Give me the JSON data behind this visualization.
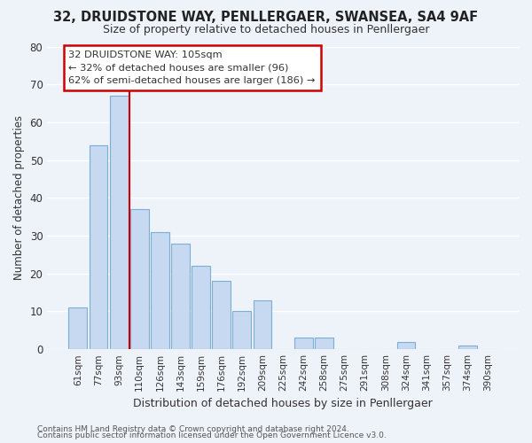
{
  "title": "32, DRUIDSTONE WAY, PENLLERGAER, SWANSEA, SA4 9AF",
  "subtitle": "Size of property relative to detached houses in Penllergaer",
  "xlabel": "Distribution of detached houses by size in Penllergaer",
  "ylabel": "Number of detached properties",
  "bar_labels": [
    "61sqm",
    "77sqm",
    "93sqm",
    "110sqm",
    "126sqm",
    "143sqm",
    "159sqm",
    "176sqm",
    "192sqm",
    "209sqm",
    "225sqm",
    "242sqm",
    "258sqm",
    "275sqm",
    "291sqm",
    "308sqm",
    "324sqm",
    "341sqm",
    "357sqm",
    "374sqm",
    "390sqm"
  ],
  "bar_values": [
    11,
    54,
    67,
    37,
    31,
    28,
    22,
    18,
    10,
    13,
    0,
    3,
    3,
    0,
    0,
    0,
    2,
    0,
    0,
    1,
    0
  ],
  "bar_color": "#c6d9f0",
  "bar_edge_color": "#7bafd4",
  "vline_color": "#cc0000",
  "annotation_title": "32 DRUIDSTONE WAY: 105sqm",
  "annotation_line1": "← 32% of detached houses are smaller (96)",
  "annotation_line2": "62% of semi-detached houses are larger (186) →",
  "annotation_box_edge": "#cc0000",
  "ylim": [
    0,
    80
  ],
  "yticks": [
    0,
    10,
    20,
    30,
    40,
    50,
    60,
    70,
    80
  ],
  "footer1": "Contains HM Land Registry data © Crown copyright and database right 2024.",
  "footer2": "Contains public sector information licensed under the Open Government Licence v3.0.",
  "bg_color": "#eef2f9",
  "plot_bg_color": "#eef2f9",
  "grid_color": "#ffffff"
}
